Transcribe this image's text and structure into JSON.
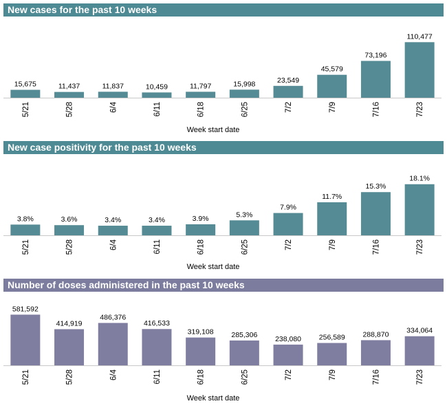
{
  "charts": [
    {
      "banner_color": "#4e8a93",
      "bar_color": "#548b94",
      "chart_data": {
        "type": "bar",
        "title": "New cases for the past 10 weeks",
        "xlabel": "Week start date",
        "ylabel": "",
        "categories": [
          "5/21",
          "5/28",
          "6/4",
          "6/11",
          "6/18",
          "6/25",
          "7/2",
          "7/9",
          "7/16",
          "7/23"
        ],
        "values": [
          15675,
          11437,
          11837,
          10459,
          11797,
          15998,
          23549,
          45579,
          73196,
          110477
        ],
        "labels": [
          "15,675",
          "11,437",
          "11,837",
          "10,459",
          "11,797",
          "15,998",
          "23,549",
          "45,579",
          "73,196",
          "110,477"
        ],
        "ylim": [
          0,
          115000
        ]
      }
    },
    {
      "banner_color": "#4e8a93",
      "bar_color": "#548b94",
      "chart_data": {
        "type": "bar",
        "title": "New case positivity for the past 10 weeks",
        "xlabel": "Week start date",
        "ylabel": "",
        "categories": [
          "5/21",
          "5/28",
          "6/4",
          "6/11",
          "6/18",
          "6/25",
          "7/2",
          "7/9",
          "7/16",
          "7/23"
        ],
        "values": [
          3.8,
          3.6,
          3.4,
          3.4,
          3.9,
          5.3,
          7.9,
          11.7,
          15.3,
          18.1
        ],
        "labels": [
          "3.8%",
          "3.6%",
          "3.4%",
          "3.4%",
          "3.9%",
          "5.3%",
          "7.9%",
          "11.7%",
          "15.3%",
          "18.1%"
        ],
        "ylim": [
          0,
          19.5
        ]
      }
    },
    {
      "banner_color": "#7b7c9e",
      "bar_color": "#7f7ea0",
      "chart_data": {
        "type": "bar",
        "title": "Number of doses administered in the past 10 weeks",
        "xlabel": "Week start date",
        "ylabel": "",
        "categories": [
          "5/21",
          "5/28",
          "6/4",
          "6/11",
          "6/18",
          "6/25",
          "7/2",
          "7/9",
          "7/16",
          "7/23"
        ],
        "values": [
          581592,
          414919,
          486376,
          416533,
          319108,
          285306,
          238080,
          256589,
          288870,
          334064
        ],
        "labels": [
          "581,592",
          "414,919",
          "486,376",
          "416,533",
          "319,108",
          "285,306",
          "238,080",
          "256,589",
          "288,870",
          "334,064"
        ],
        "ylim": [
          0,
          600000
        ]
      }
    }
  ]
}
